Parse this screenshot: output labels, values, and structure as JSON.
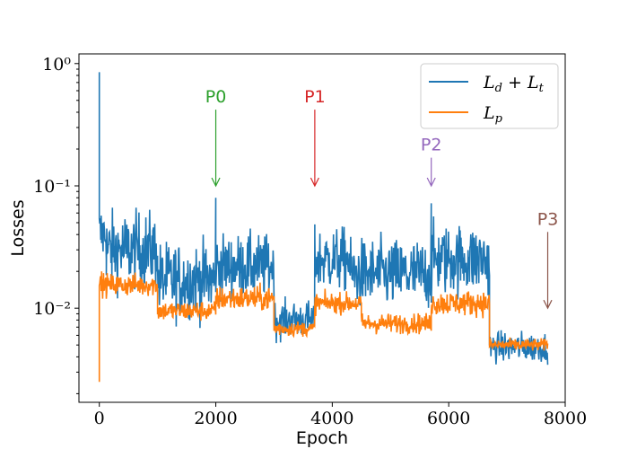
{
  "chart_data": {
    "type": "line",
    "title": "",
    "xlabel": "Epoch",
    "ylabel": "Losses",
    "xlim": [
      -350,
      8000
    ],
    "ylim": [
      0.0017,
      1.2
    ],
    "yscale": "log",
    "xticks": [
      0,
      2000,
      4000,
      6000,
      8000
    ],
    "xtick_labels": [
      "0",
      "2000",
      "4000",
      "6000",
      "8000"
    ],
    "yticks": [
      0.01,
      0.1,
      1
    ],
    "ytick_labels": [
      "10⁻²",
      "10⁻¹",
      "10⁰"
    ],
    "legend": {
      "position": "top-right",
      "entries": [
        "L_d + L_t",
        "L_p"
      ]
    },
    "series": [
      {
        "name": "L_d + L_t",
        "color": "#1f77b4",
        "segments": [
          {
            "x0": 0,
            "x1": 120,
            "mean": 0.04,
            "jitter": 0.25
          },
          {
            "x0": 120,
            "x1": 1000,
            "mean": 0.03,
            "jitter": 0.3
          },
          {
            "x0": 1000,
            "x1": 2000,
            "mean": 0.017,
            "jitter": 0.3
          },
          {
            "x0": 2000,
            "x1": 3000,
            "mean": 0.022,
            "jitter": 0.25
          },
          {
            "x0": 3000,
            "x1": 3700,
            "mean": 0.008,
            "jitter": 0.15
          },
          {
            "x0": 3700,
            "x1": 4300,
            "mean": 0.025,
            "jitter": 0.25
          },
          {
            "x0": 4300,
            "x1": 5700,
            "mean": 0.019,
            "jitter": 0.28
          },
          {
            "x0": 5700,
            "x1": 6700,
            "mean": 0.025,
            "jitter": 0.28
          },
          {
            "x0": 6700,
            "x1": 7700,
            "mean": 0.0048,
            "jitter": 0.12
          }
        ],
        "peaks": [
          {
            "x": 0,
            "y": 0.85
          },
          {
            "x": 2000,
            "y": 0.08
          },
          {
            "x": 3700,
            "y": 0.04
          },
          {
            "x": 5700,
            "y": 0.072
          }
        ]
      },
      {
        "name": "L_p",
        "color": "#ff7f0e",
        "segments": [
          {
            "x0": 0,
            "x1": 1000,
            "mean": 0.0155,
            "jitter": 0.09
          },
          {
            "x0": 1000,
            "x1": 2000,
            "mean": 0.0095,
            "jitter": 0.08
          },
          {
            "x0": 2000,
            "x1": 3000,
            "mean": 0.012,
            "jitter": 0.1
          },
          {
            "x0": 3000,
            "x1": 3700,
            "mean": 0.0068,
            "jitter": 0.06
          },
          {
            "x0": 3700,
            "x1": 4500,
            "mean": 0.011,
            "jitter": 0.08
          },
          {
            "x0": 4500,
            "x1": 5700,
            "mean": 0.0075,
            "jitter": 0.08
          },
          {
            "x0": 5700,
            "x1": 6700,
            "mean": 0.011,
            "jitter": 0.1
          },
          {
            "x0": 6700,
            "x1": 7700,
            "mean": 0.005,
            "jitter": 0.05
          }
        ],
        "peaks": [
          {
            "x": 0,
            "y": 0.0025
          },
          {
            "x": 40,
            "y": 0.02
          }
        ]
      }
    ],
    "annotations": [
      {
        "label": "P0",
        "color": "#2ca02c",
        "x": 2000,
        "arrow_top_y": 0.42,
        "arrow_tip_y": 0.1
      },
      {
        "label": "P1",
        "color": "#d62728",
        "x": 3700,
        "arrow_top_y": 0.42,
        "arrow_tip_y": 0.1
      },
      {
        "label": "P2",
        "color": "#9467bd",
        "x": 5700,
        "arrow_top_y": 0.17,
        "arrow_tip_y": 0.1
      },
      {
        "label": "P3",
        "color": "#8c564b",
        "x": 7700,
        "arrow_top_y": 0.042,
        "arrow_tip_y": 0.01
      }
    ]
  }
}
